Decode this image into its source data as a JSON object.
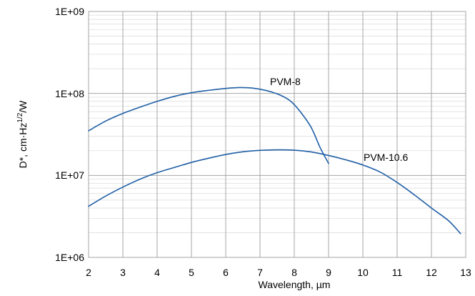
{
  "chart_data": {
    "type": "line",
    "title": "",
    "xlabel": "Wavelength, µm",
    "ylabel": "D*, cm·Hz",
    "ylabel_superscript": "1/2",
    "ylabel_suffix": "/W",
    "xlim": [
      2,
      13
    ],
    "ylim": [
      1000000,
      1000000000
    ],
    "y_scale": "log",
    "x_ticks": [
      "2",
      "3",
      "4",
      "5",
      "6",
      "7",
      "8",
      "9",
      "10",
      "11",
      "12",
      "13"
    ],
    "y_ticks": [
      "1E+06",
      "1E+07",
      "1E+08",
      "1E+09"
    ],
    "grid": true,
    "legend": "none",
    "series": [
      {
        "name": "PVM-8",
        "color": "#1f5fa6",
        "x": [
          2.0,
          2.5,
          3.0,
          3.5,
          4.0,
          4.5,
          5.0,
          5.5,
          6.0,
          6.4,
          6.8,
          7.2,
          7.6,
          7.9,
          8.2,
          8.5,
          8.75,
          9.0
        ],
        "y": [
          35000000,
          46000000,
          57000000,
          68000000,
          80000000,
          92000000,
          102000000,
          109000000,
          115000000,
          118000000,
          116000000,
          108000000,
          95000000,
          80000000,
          58000000,
          38000000,
          22000000,
          14000000
        ]
      },
      {
        "name": "PVM-10.6",
        "color": "#1f5fa6",
        "x": [
          2.0,
          2.5,
          3.0,
          3.5,
          4.0,
          4.5,
          5.0,
          5.5,
          6.0,
          6.5,
          7.0,
          7.5,
          8.0,
          8.5,
          9.0,
          9.5,
          10.0,
          10.5,
          11.0,
          11.5,
          12.0,
          12.5,
          12.85
        ],
        "y": [
          4200000,
          5600000,
          7200000,
          9000000,
          10800000,
          12500000,
          14400000,
          16200000,
          18000000,
          19400000,
          20200000,
          20500000,
          20300000,
          19300000,
          17500000,
          15500000,
          13400000,
          11000000,
          8200000,
          5800000,
          4000000,
          2800000,
          1950000
        ]
      }
    ]
  }
}
